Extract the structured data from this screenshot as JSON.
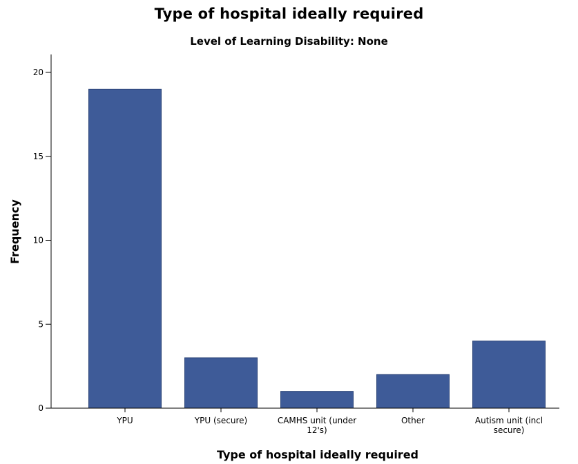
{
  "chart_data": {
    "type": "bar",
    "title": "Type of hospital ideally required",
    "subtitle": "Level of Learning Disability: None",
    "xlabel": "Type of hospital ideally required",
    "ylabel": "Frequency",
    "categories": [
      [
        "YPU"
      ],
      [
        "YPU (secure)"
      ],
      [
        "CAMHS unit (under",
        "12's)"
      ],
      [
        "Other"
      ],
      [
        "Autism unit (incl",
        "secure)"
      ]
    ],
    "values": [
      19,
      3,
      1,
      2,
      4
    ],
    "ylim": [
      0,
      21.5
    ],
    "yticks": [
      0,
      5,
      10,
      15,
      20
    ],
    "grid": false,
    "legend": "none",
    "bar_color": "#3e5b98",
    "bar_edge_color": "#2b4478"
  }
}
